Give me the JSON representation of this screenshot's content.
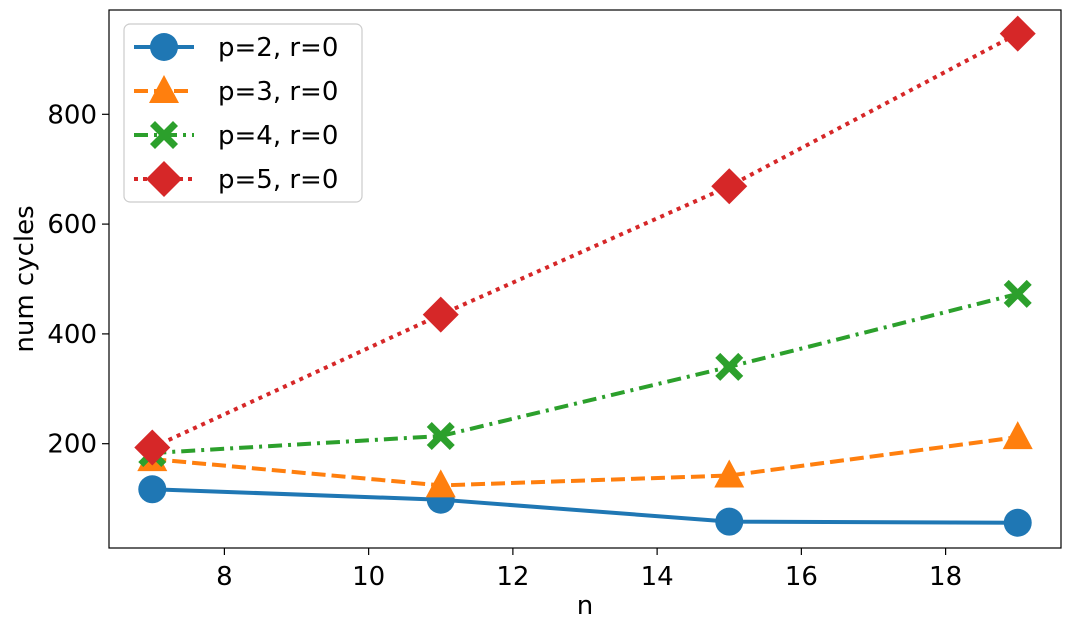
{
  "chart_data": {
    "type": "line",
    "xlabel": "n",
    "ylabel": "num cycles",
    "xlim": [
      6.4,
      19.6
    ],
    "ylim": [
      10,
      990
    ],
    "xticks": [
      8,
      10,
      12,
      14,
      16,
      18
    ],
    "yticks": [
      200,
      400,
      600,
      800
    ],
    "x": [
      7,
      11,
      15,
      19
    ],
    "legend_position": "top-left",
    "grid": false,
    "series": [
      {
        "name": "p=2, r=0",
        "color": "#1f77b4",
        "linestyle": "solid",
        "marker": "circle",
        "values": [
          117,
          98,
          58,
          56
        ]
      },
      {
        "name": "p=3, r=0",
        "color": "#ff7f0e",
        "linestyle": "dashed",
        "marker": "triangle",
        "values": [
          172,
          124,
          142,
          212
        ]
      },
      {
        "name": "p=4, r=0",
        "color": "#2ca02c",
        "linestyle": "dashdot",
        "marker": "x",
        "values": [
          183,
          214,
          340,
          473
        ]
      },
      {
        "name": "p=5, r=0",
        "color": "#d62728",
        "linestyle": "dotted",
        "marker": "diamond",
        "values": [
          193,
          435,
          669,
          947
        ]
      }
    ]
  }
}
